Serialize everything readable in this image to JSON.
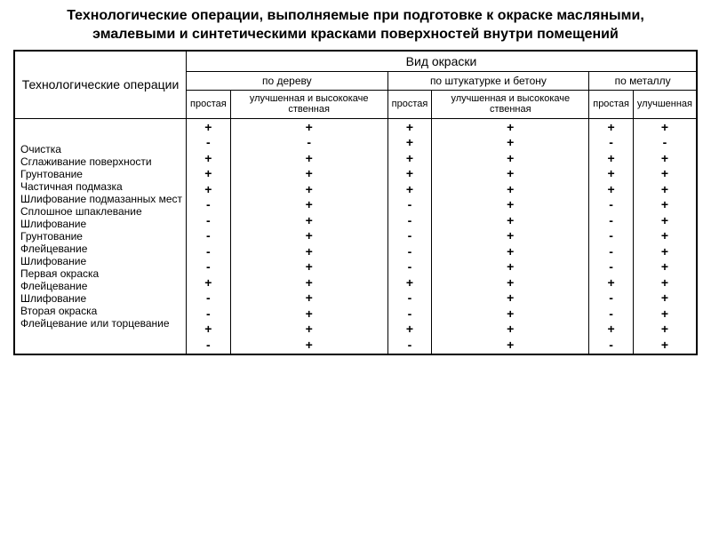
{
  "title": "Технологические операции, выполняемые при подготовке к окраске масляными, эмалевыми и синтетическими красками поверхностей внутри помещений",
  "headers": {
    "operations": "Технологические операции",
    "paint_type": "Вид окраски",
    "wood": "по дереву",
    "plaster": "по штукатурке и бетону",
    "metal": "по металлу",
    "simple": "простая",
    "improved": "улучшенная и высококаче ственная",
    "improved_short": "улучшенная"
  },
  "operations": [
    "Очистка",
    "Сглаживание поверхности",
    "Грунтование",
    "Частичная подмазка",
    "Шлифование подмазанных мест",
    "Сплошное шпаклевание",
    "Шлифование",
    "Грунтование",
    "Флейцевание",
    "Шлифование",
    "Первая окраска",
    "Флейцевание",
    "Шлифование",
    "Вторая окраска",
    "Флейцевание или торцевание"
  ],
  "columns": [
    [
      "+",
      "-",
      "+",
      "+",
      "+",
      "-",
      "-",
      "-",
      "-",
      "-",
      "+",
      "-",
      "-",
      "+",
      "-"
    ],
    [
      "+",
      "-",
      "+",
      "+",
      "+",
      "+",
      "+",
      "+",
      "+",
      "+",
      "+",
      "+",
      "+",
      "+",
      "+"
    ],
    [
      "+",
      "+",
      "+",
      "+",
      "+",
      "-",
      "-",
      "-",
      "-",
      "-",
      "+",
      "-",
      "-",
      "+",
      "-"
    ],
    [
      "+",
      "+",
      "+",
      "+",
      "+",
      "+",
      "+",
      "+",
      "+",
      "+",
      "+",
      "+",
      "+",
      "+",
      "+"
    ],
    [
      "+",
      "-",
      "+",
      "+",
      "+",
      "-",
      "-",
      "-",
      "-",
      "-",
      "+",
      "-",
      "-",
      "+",
      "-"
    ],
    [
      "+",
      "-",
      "+",
      "+",
      "+",
      "+",
      "+",
      "+",
      "+",
      "+",
      "+",
      "+",
      "+",
      "+",
      "+"
    ]
  ],
  "style": {
    "background_color": "#ffffff",
    "text_color": "#000000",
    "border_color": "#000000",
    "title_fontsize": 16,
    "header_main_fontsize": 14,
    "header_sub_fontsize": 12,
    "body_fontsize": 12,
    "mark_fontsize": 14
  }
}
